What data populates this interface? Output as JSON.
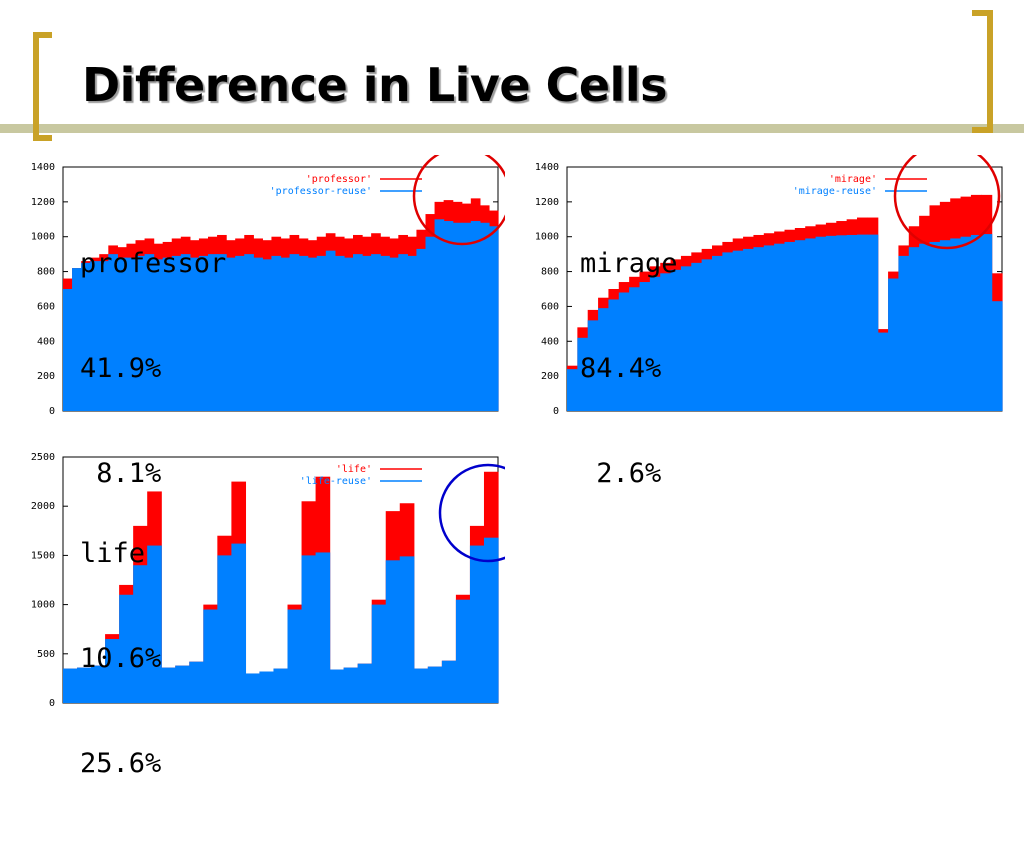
{
  "slide": {
    "title": "Difference in Live Cells",
    "accent_color": "#C9A227",
    "line_color": "#C8C8A0"
  },
  "colors": {
    "base": "#FF0000",
    "reuse": "#0080FF",
    "circle_red": "#E00000",
    "circle_blue": "#0000CC"
  },
  "chart_data": [
    {
      "type": "area",
      "ylim": [
        0,
        1400
      ],
      "yticks": [
        "0",
        "200",
        "400",
        "600",
        "800",
        "1000",
        "1200",
        "1400"
      ],
      "legend_position": "top-right",
      "series": [
        {
          "name": "'professor'",
          "color": "#FF0000",
          "values": [
            760,
            820,
            860,
            880,
            900,
            950,
            940,
            960,
            980,
            990,
            960,
            970,
            990,
            1000,
            980,
            990,
            1000,
            1010,
            980,
            990,
            1010,
            990,
            980,
            1000,
            990,
            1010,
            990,
            980,
            1000,
            1020,
            1000,
            990,
            1010,
            1000,
            1020,
            1000,
            990,
            1010,
            1000,
            1040,
            1130,
            1200,
            1210,
            1200,
            1190,
            1220,
            1180,
            1150
          ]
        },
        {
          "name": "'professor-reuse'",
          "color": "#0080FF",
          "values": [
            700,
            820,
            850,
            860,
            860,
            900,
            880,
            880,
            890,
            900,
            870,
            880,
            890,
            900,
            880,
            890,
            900,
            900,
            880,
            890,
            900,
            880,
            870,
            890,
            880,
            900,
            890,
            880,
            890,
            920,
            890,
            880,
            900,
            890,
            900,
            890,
            880,
            900,
            890,
            930,
            1000,
            1100,
            1090,
            1080,
            1080,
            1090,
            1080,
            1060
          ]
        }
      ],
      "annotation": {
        "name": "professor",
        "values": [
          "41.9%",
          " 8.1%"
        ]
      },
      "highlight": "red-circle"
    },
    {
      "type": "area",
      "ylim": [
        0,
        1400
      ],
      "yticks": [
        "0",
        "200",
        "400",
        "600",
        "800",
        "1000",
        "1200",
        "1400"
      ],
      "legend_position": "top-right",
      "series": [
        {
          "name": "'mirage'",
          "color": "#FF0000",
          "values": [
            260,
            480,
            580,
            650,
            700,
            740,
            770,
            800,
            830,
            850,
            870,
            890,
            910,
            930,
            950,
            970,
            990,
            1000,
            1010,
            1020,
            1030,
            1040,
            1050,
            1060,
            1070,
            1080,
            1090,
            1100,
            1110,
            1110,
            470,
            800,
            950,
            1060,
            1120,
            1180,
            1200,
            1220,
            1230,
            1240,
            1240,
            790
          ]
        },
        {
          "name": "'mirage-reuse'",
          "color": "#0080FF",
          "values": [
            240,
            420,
            520,
            590,
            640,
            680,
            710,
            740,
            770,
            790,
            810,
            830,
            850,
            870,
            890,
            910,
            920,
            930,
            940,
            950,
            960,
            970,
            980,
            990,
            1000,
            1005,
            1008,
            1010,
            1012,
            1012,
            450,
            760,
            890,
            940,
            960,
            970,
            980,
            990,
            1000,
            1010,
            1015,
            630
          ]
        }
      ],
      "annotation": {
        "name": "mirage",
        "values": [
          "84.4%",
          " 2.6%"
        ]
      },
      "highlight": "red-circle"
    },
    {
      "type": "area",
      "ylim": [
        0,
        2500
      ],
      "yticks": [
        "0",
        "500",
        "1000",
        "1500",
        "2000",
        "2500"
      ],
      "legend_position": "top-right",
      "series": [
        {
          "name": "'life'",
          "color": "#FF0000",
          "values": [
            350,
            360,
            380,
            700,
            1200,
            1800,
            2150,
            360,
            380,
            420,
            1000,
            1700,
            2250,
            300,
            320,
            350,
            1000,
            2050,
            2300,
            340,
            360,
            400,
            1050,
            1950,
            2030,
            350,
            370,
            430,
            1100,
            1800,
            2350
          ]
        },
        {
          "name": "'life-reuse'",
          "color": "#0080FF",
          "values": [
            350,
            360,
            380,
            650,
            1100,
            1400,
            1600,
            360,
            380,
            420,
            950,
            1500,
            1620,
            300,
            320,
            350,
            950,
            1500,
            1530,
            340,
            360,
            400,
            1000,
            1450,
            1490,
            350,
            370,
            430,
            1050,
            1600,
            1680
          ]
        }
      ],
      "annotation": {
        "name": "life",
        "values": [
          "10.6%",
          "25.6%"
        ]
      },
      "highlight": "blue-circle"
    }
  ]
}
